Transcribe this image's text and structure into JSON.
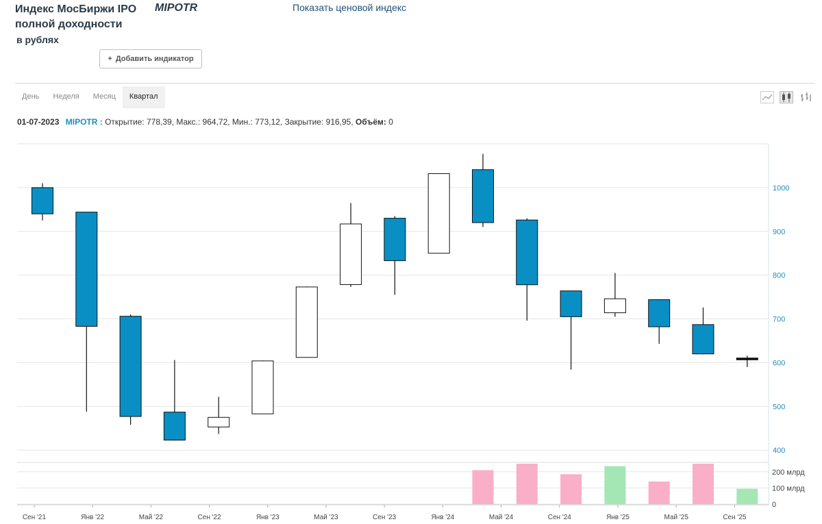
{
  "header": {
    "title_line1": "Индекс МосБиржи IPO",
    "title_line2": "полной доходности",
    "title_line3": "в рублях",
    "ticker": "MIPOTR",
    "price_index_link": "Показать ценовой индекс",
    "add_indicator_label": "Добавить индикатор",
    "add_indicator_icon": "+"
  },
  "tabs": [
    {
      "label": "День",
      "active": false
    },
    {
      "label": "Неделя",
      "active": false
    },
    {
      "label": "Месяц",
      "active": false
    },
    {
      "label": "Квартал",
      "active": true
    }
  ],
  "info": {
    "date": "01-07-2023",
    "symbol": "MIPOTR :",
    "values": "Открытие: 778,39, Макс.: 964,72, Мин.: 773,12, Закрытие: 916,95,",
    "volume_label": "Объём:",
    "volume_value": "0"
  },
  "colors": {
    "down": "#0a8fc4",
    "up": "#ffffff",
    "volume_down": "#f9afc7",
    "volume_up": "#a5e6b5",
    "axis_text": "#1b8fbf",
    "grid": "#e6e6e6"
  },
  "chart_data": {
    "type": "candlestick",
    "period": "quarter",
    "ylim": [
      380,
      1100
    ],
    "y_ticks": [
      400,
      500,
      600,
      700,
      800,
      900,
      1000
    ],
    "x_labels": [
      "Сен '21",
      "Янв '22",
      "Май '22",
      "Сен '22",
      "Янв '23",
      "Май '23",
      "Сен '23",
      "Янв '24",
      "Май '24",
      "Сен '24",
      "Янв '25",
      "Май '25",
      "Сен '25"
    ],
    "candles": [
      {
        "open": 1000,
        "high": 1010,
        "low": 925,
        "close": 940
      },
      {
        "open": 944,
        "high": 944,
        "low": 488,
        "close": 683
      },
      {
        "open": 706,
        "high": 710,
        "low": 458,
        "close": 477
      },
      {
        "open": 487,
        "high": 606,
        "low": 422,
        "close": 423
      },
      {
        "open": 453,
        "high": 522,
        "low": 437,
        "close": 475
      },
      {
        "open": 483,
        "high": 605,
        "low": 483,
        "close": 604
      },
      {
        "open": 612,
        "high": 774,
        "low": 612,
        "close": 773
      },
      {
        "open": 778.39,
        "high": 964.72,
        "low": 773.12,
        "close": 916.95
      },
      {
        "open": 930,
        "high": 935,
        "low": 755,
        "close": 833
      },
      {
        "open": 850,
        "high": 1032,
        "low": 850,
        "close": 1032
      },
      {
        "open": 1041,
        "high": 1077,
        "low": 910,
        "close": 920
      },
      {
        "open": 926,
        "high": 930,
        "low": 696,
        "close": 778
      },
      {
        "open": 764,
        "high": 764,
        "low": 584,
        "close": 705
      },
      {
        "open": 714,
        "high": 805,
        "low": 705,
        "close": 746
      },
      {
        "open": 744,
        "high": 744,
        "low": 643,
        "close": 682
      },
      {
        "open": 687,
        "high": 726,
        "low": 619,
        "close": 620
      },
      {
        "open": 609,
        "high": 616,
        "low": 590,
        "close": 608
      }
    ],
    "volume": {
      "unit": "млрд",
      "ylim": [
        0,
        250
      ],
      "ticks": [
        {
          "value": 0,
          "label": "0"
        },
        {
          "value": 100,
          "label": "100 млрд"
        },
        {
          "value": 200,
          "label": "200 млрд"
        }
      ],
      "bars": [
        {
          "index": 10,
          "value": 210,
          "dir": "down"
        },
        {
          "index": 11,
          "value": 250,
          "dir": "down"
        },
        {
          "index": 12,
          "value": 185,
          "dir": "down"
        },
        {
          "index": 13,
          "value": 235,
          "dir": "up"
        },
        {
          "index": 14,
          "value": 140,
          "dir": "down"
        },
        {
          "index": 15,
          "value": 255,
          "dir": "down"
        },
        {
          "index": 16,
          "value": 95,
          "dir": "up"
        }
      ]
    }
  }
}
